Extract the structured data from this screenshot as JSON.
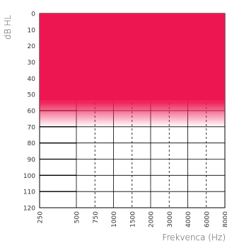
{
  "chart_data": {
    "type": "area",
    "ylabel": "dB HL",
    "xlabel": "Frekvenca (Hz)",
    "x_ticks": [
      "250",
      "500",
      "750",
      "1000",
      "1500",
      "2000",
      "3000",
      "4000",
      "6000",
      "8000"
    ],
    "y_ticks": [
      "0",
      "10",
      "20",
      "30",
      "40",
      "50",
      "60",
      "70",
      "80",
      "90",
      "100",
      "110",
      "120"
    ],
    "ylim": [
      0,
      120
    ],
    "y_inverted": true,
    "shaded_region": {
      "color": "#ee1650",
      "solid_from_db": 0,
      "solid_to_db": 54,
      "fade_to_db": 70
    },
    "grid": true
  }
}
